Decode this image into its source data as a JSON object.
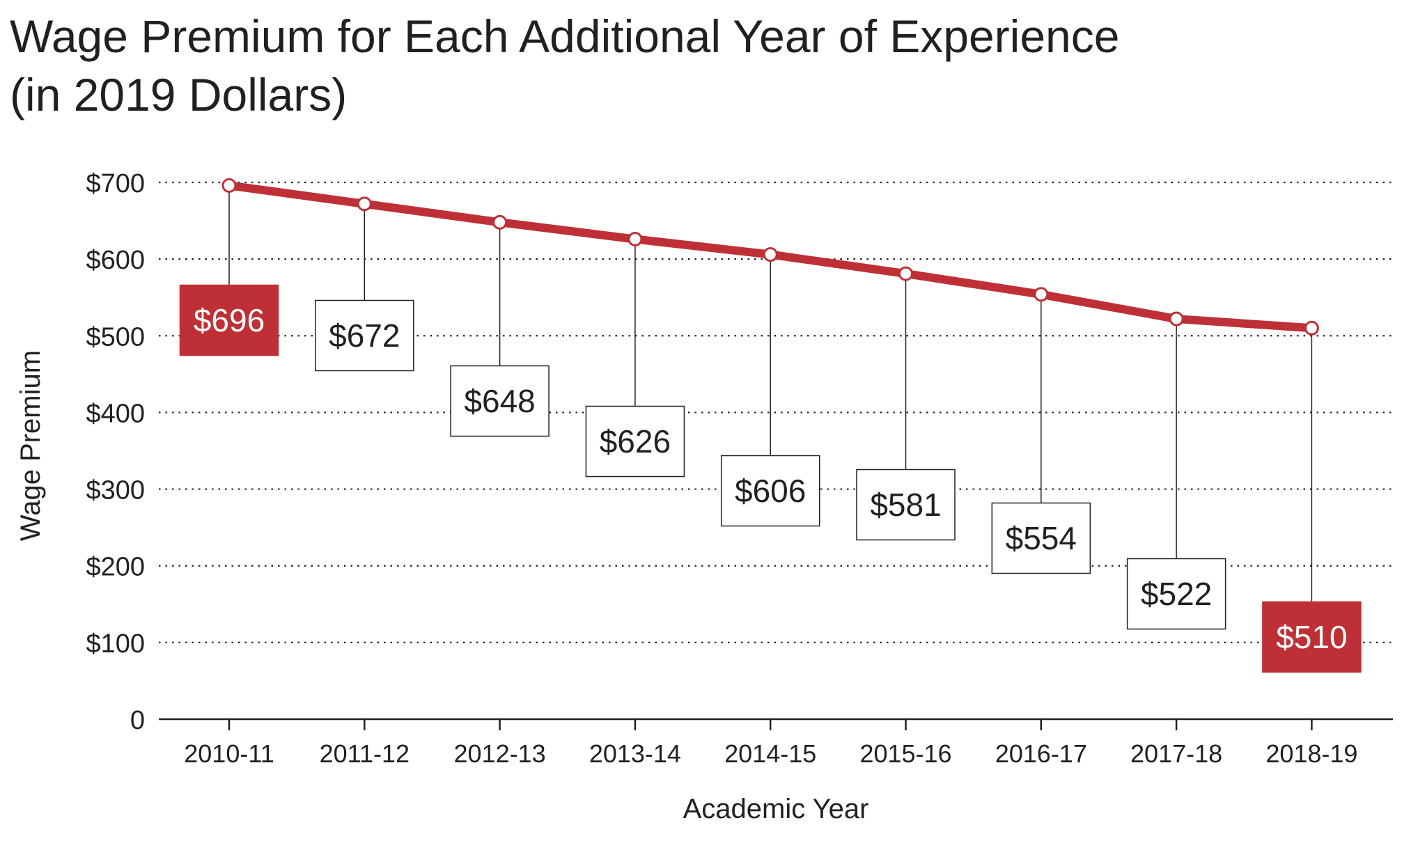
{
  "title_line1": "Wage Premium for Each Additional Year of Experience",
  "title_line2": "(in 2019 Dollars)",
  "chart_data": {
    "type": "line",
    "categories": [
      "2010-11",
      "2011-12",
      "2012-13",
      "2013-14",
      "2014-15",
      "2015-16",
      "2016-17",
      "2017-18",
      "2018-19"
    ],
    "values": [
      696,
      672,
      648,
      626,
      606,
      581,
      554,
      522,
      510
    ],
    "data_labels": [
      "$696",
      "$672",
      "$648",
      "$626",
      "$606",
      "$581",
      "$554",
      "$522",
      "$510"
    ],
    "highlighted": [
      0,
      8
    ],
    "ylim": [
      0,
      700
    ],
    "yticks": [
      0,
      100,
      200,
      300,
      400,
      500,
      600,
      700
    ],
    "ytick_labels": [
      "0",
      "$100",
      "$200",
      "$300",
      "$400",
      "$500",
      "$600",
      "$700"
    ],
    "xlabel": "Academic Year",
    "ylabel": "Wage Premium",
    "grid": "horizontal dotted",
    "colors": {
      "line": "#be3036",
      "highlight_fill": "#be3036",
      "text": "#231f20"
    }
  }
}
